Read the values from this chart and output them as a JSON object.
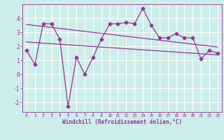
{
  "title": "",
  "xlabel": "Windchill (Refroidissement éolien,°C)",
  "ylabel": "",
  "bg_color": "#cceee8",
  "grid_color": "#ffffff",
  "line_color": "#993399",
  "xlim": [
    -0.5,
    23.5
  ],
  "ylim": [
    -2.7,
    5.0
  ],
  "yticks": [
    -2,
    -1,
    0,
    1,
    2,
    3,
    4
  ],
  "xticks": [
    0,
    1,
    2,
    3,
    4,
    5,
    6,
    7,
    8,
    9,
    10,
    11,
    12,
    13,
    14,
    15,
    16,
    17,
    18,
    19,
    20,
    21,
    22,
    23
  ],
  "data_line": [
    1.7,
    0.7,
    3.6,
    3.6,
    2.5,
    -2.3,
    1.2,
    0.0,
    1.2,
    2.5,
    3.6,
    3.6,
    3.7,
    3.6,
    4.7,
    3.5,
    2.6,
    2.6,
    2.9,
    2.6,
    2.6,
    1.1,
    1.7,
    1.5
  ],
  "trend1": [
    3.55,
    3.48,
    3.41,
    3.34,
    3.27,
    3.2,
    3.13,
    3.06,
    2.99,
    2.92,
    2.85,
    2.78,
    2.71,
    2.64,
    2.57,
    2.5,
    2.43,
    2.36,
    2.29,
    2.22,
    2.15,
    2.08,
    2.01,
    1.94
  ],
  "trend2": [
    2.3,
    2.26,
    2.22,
    2.18,
    2.14,
    2.1,
    2.06,
    2.02,
    1.98,
    1.94,
    1.9,
    1.86,
    1.82,
    1.78,
    1.74,
    1.7,
    1.66,
    1.62,
    1.58,
    1.54,
    1.5,
    1.46,
    1.42,
    1.38
  ]
}
